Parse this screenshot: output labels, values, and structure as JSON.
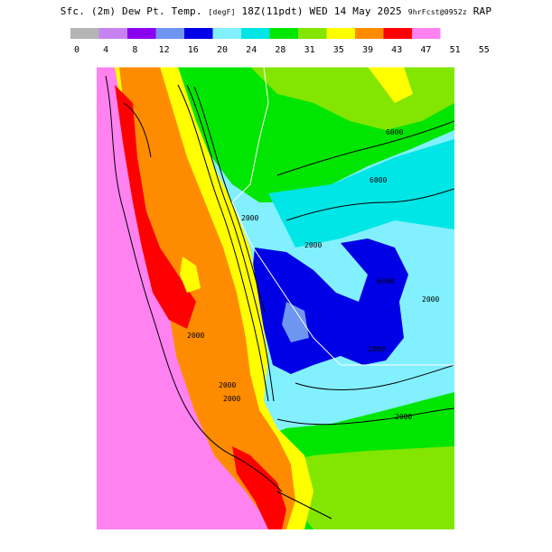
{
  "title": {
    "part1": "Sfc. (2m) Dew Pt. Temp.",
    "units": "[degF]",
    "part2": "18Z(11pdt) WED 14 May 2025",
    "fcst": "9hrFcst@0952z",
    "model": "RAP"
  },
  "legend": {
    "ticks": [
      "0",
      "4",
      "8",
      "12",
      "16",
      "20",
      "24",
      "28",
      "31",
      "35",
      "39",
      "43",
      "47",
      "51",
      "55"
    ],
    "colors": [
      "#b4b4b4",
      "#c882f0",
      "#8c00f0",
      "#6e96f0",
      "#0000e6",
      "#82f0ff",
      "#00e6e6",
      "#00e600",
      "#82e600",
      "#ffff00",
      "#ff8c00",
      "#ff0000",
      "#ff82f0"
    ]
  },
  "map": {
    "contour_labels": [
      "6000",
      "6000",
      "6000",
      "2000",
      "2000",
      "2000",
      "2000",
      "2000",
      "2000",
      "2000",
      "2000"
    ],
    "colors": {
      "pink": "#ff82f0",
      "red": "#ff0000",
      "orange": "#ff8c00",
      "yellow": "#ffff00",
      "lime": "#82e600",
      "green": "#00e600",
      "cyan": "#00e6e6",
      "lightcyan": "#82f0ff",
      "blue": "#0000e6",
      "lightblue": "#6e96f0"
    }
  }
}
